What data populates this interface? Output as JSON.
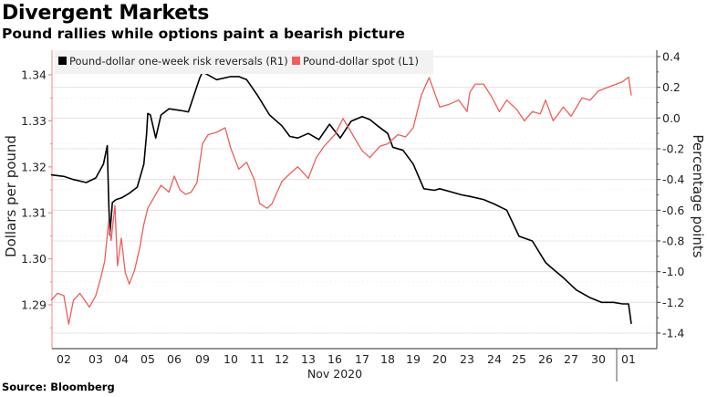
{
  "title": "Divergent Markets",
  "subtitle": "Pound rallies while options paint a bearish picture",
  "source": "Source: Bloomberg",
  "colors": {
    "risk_reversals": "#000000",
    "spot": "#f25c5c",
    "left_axis": "#f28b8b",
    "right_axis": "#555555",
    "grid": "#dddddd",
    "legend_bg": "#f2f2f2"
  },
  "chart_data": {
    "type": "line",
    "title": "Divergent Markets",
    "subtitle": "Pound rallies while options paint a bearish picture",
    "xlabel": "Nov 2020",
    "ylabel_left": "Dollars per pound",
    "ylabel_right": "Percentage points",
    "ylim_left": [
      1.284,
      1.344
    ],
    "ylim_right": [
      -1.5,
      0.42
    ],
    "yticks_left": [
      "1.34",
      "1.33",
      "1.32",
      "1.31",
      "1.30",
      "1.29"
    ],
    "yticks_right": [
      "0.4",
      "0.2",
      "0.0",
      "-0.2",
      "-0.4",
      "-0.6",
      "-0.8",
      "-1.0",
      "-1.2",
      "-1.4"
    ],
    "x_tick_labels": [
      "02",
      "03",
      "04",
      "05",
      "06",
      "09",
      "10",
      "11",
      "12",
      "13",
      "16",
      "17",
      "18",
      "19",
      "20",
      "23",
      "24",
      "25",
      "26",
      "27",
      "30",
      "01"
    ],
    "x_sublabel": "Nov 2020",
    "grid": true,
    "legend_placement": "top-left",
    "x_index_range": [
      -0.45,
      21.5
    ],
    "series": [
      {
        "name": "Pound-dollar one-week risk reversals (R1)",
        "axis": "right",
        "color": "#000000",
        "x": [
          -0.4,
          0.0,
          0.3,
          0.7,
          1.0,
          1.3,
          1.45,
          1.5,
          1.55,
          1.65,
          1.8,
          2.0,
          2.3,
          2.6,
          2.85,
          2.95,
          3.0,
          3.1,
          3.3,
          3.5,
          3.8,
          4.2,
          4.5,
          4.9,
          5.0,
          5.2,
          5.5,
          6.0,
          6.3,
          6.6,
          7.0,
          7.5,
          8.0,
          8.3,
          8.6,
          9.0,
          9.4,
          9.8,
          10.2,
          10.6,
          11.0,
          11.3,
          11.6,
          12.0,
          12.2,
          12.6,
          13.0,
          13.4,
          13.8,
          14.0,
          14.4,
          14.8,
          15.1,
          15.6,
          16.0,
          16.5,
          17.0,
          17.5,
          18.0,
          18.2,
          18.7,
          19.2,
          19.7,
          20.1,
          20.5,
          20.8,
          21.0,
          21.1
        ],
        "values": [
          -0.37,
          -0.38,
          -0.4,
          -0.42,
          -0.39,
          -0.3,
          -0.18,
          -0.51,
          -0.76,
          -0.55,
          -0.53,
          -0.52,
          -0.49,
          -0.45,
          -0.3,
          -0.11,
          0.03,
          0.02,
          -0.13,
          0.02,
          0.06,
          0.05,
          0.04,
          0.26,
          0.3,
          0.28,
          0.25,
          0.27,
          0.27,
          0.25,
          0.15,
          0.02,
          -0.05,
          -0.12,
          -0.13,
          -0.1,
          -0.14,
          -0.04,
          -0.13,
          -0.02,
          0.01,
          -0.01,
          -0.05,
          -0.1,
          -0.19,
          -0.21,
          -0.3,
          -0.46,
          -0.47,
          -0.46,
          -0.48,
          -0.5,
          -0.51,
          -0.53,
          -0.56,
          -0.6,
          -0.77,
          -0.8,
          -0.94,
          -0.97,
          -1.04,
          -1.12,
          -1.17,
          -1.2,
          -1.2,
          -1.21,
          -1.21,
          -1.34
        ]
      },
      {
        "name": "Pound-dollar spot (L1)",
        "axis": "left",
        "color": "#f25c5c",
        "x": [
          -0.4,
          -0.2,
          0.0,
          0.15,
          0.3,
          0.5,
          0.8,
          1.0,
          1.2,
          1.35,
          1.5,
          1.6,
          1.75,
          1.85,
          2.0,
          2.15,
          2.3,
          2.5,
          2.7,
          2.85,
          3.0,
          3.2,
          3.5,
          3.8,
          4.0,
          4.2,
          4.4,
          4.6,
          4.8,
          5.0,
          5.2,
          5.5,
          5.8,
          6.0,
          6.3,
          6.6,
          6.9,
          7.1,
          7.4,
          7.6,
          8.0,
          8.3,
          8.6,
          9.0,
          9.3,
          9.6,
          10.0,
          10.3,
          10.7,
          11.0,
          11.3,
          11.7,
          12.0,
          12.4,
          12.7,
          13.0,
          13.3,
          13.6,
          14.0,
          14.3,
          14.7,
          15.0,
          15.1,
          15.3,
          15.6,
          15.9,
          16.2,
          16.5,
          16.9,
          17.2,
          17.5,
          17.8,
          18.0,
          18.3,
          18.7,
          19.0,
          19.4,
          19.7,
          20.0,
          20.4,
          20.8,
          21.0,
          21.1
        ],
        "values": [
          1.291,
          1.2925,
          1.292,
          1.2858,
          1.291,
          1.2925,
          1.2895,
          1.292,
          1.296,
          1.2995,
          1.308,
          1.304,
          1.3116,
          1.2985,
          1.3045,
          1.297,
          1.2945,
          1.2975,
          1.3025,
          1.3075,
          1.311,
          1.313,
          1.316,
          1.3145,
          1.318,
          1.315,
          1.314,
          1.3145,
          1.3165,
          1.325,
          1.327,
          1.3275,
          1.3285,
          1.324,
          1.3195,
          1.321,
          1.317,
          1.312,
          1.311,
          1.312,
          1.3168,
          1.3185,
          1.32,
          1.3175,
          1.322,
          1.3245,
          1.327,
          1.3305,
          1.3265,
          1.3235,
          1.322,
          1.3245,
          1.325,
          1.327,
          1.3265,
          1.3285,
          1.3355,
          1.3394,
          1.333,
          1.3335,
          1.3345,
          1.332,
          1.3362,
          1.338,
          1.338,
          1.3352,
          1.332,
          1.3345,
          1.3325,
          1.33,
          1.332,
          1.3315,
          1.3345,
          1.33,
          1.333,
          1.331,
          1.335,
          1.3345,
          1.3365,
          1.3375,
          1.3385,
          1.3395,
          1.3355
        ]
      }
    ]
  }
}
